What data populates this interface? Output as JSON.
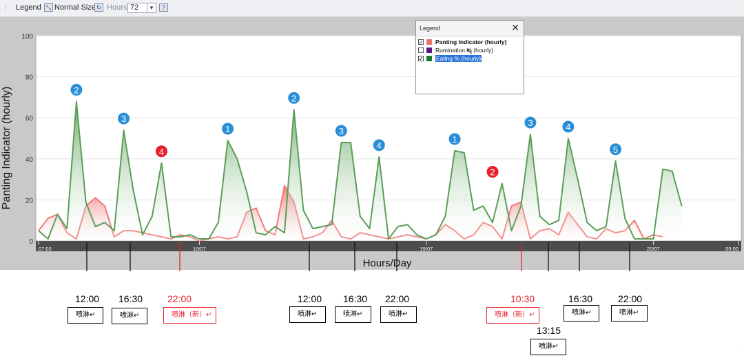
{
  "toolbar": {
    "legend_label": "Legend",
    "normal_size_label": "Normal Size",
    "hours_label": "Hours",
    "hours_value": "72",
    "help_label": "?"
  },
  "legend": {
    "title": "Legend",
    "close": "✕",
    "items": [
      {
        "label": "Panting Indicator (hourly)",
        "checked": true,
        "color": "#e8706f"
      },
      {
        "label": "Rumination % (hourly)",
        "checked": false,
        "color": "#5a1580"
      },
      {
        "label": "Eating % (hourly)",
        "checked": true,
        "color": "#1a7a2a"
      }
    ]
  },
  "chart_data": {
    "type": "area",
    "ylabel": "Panting Indicator (hourly)",
    "xlabel": "Hours/Day",
    "ylim": [
      0,
      100
    ],
    "yticks": [
      0,
      20,
      40,
      60,
      80,
      100
    ],
    "xlim": [
      0,
      74
    ],
    "xtick_labels": [
      {
        "label": "07:00",
        "hour": 0
      },
      {
        "label": "18/07",
        "hour": 17
      },
      {
        "label": "19/07",
        "hour": 41
      },
      {
        "label": "20/07",
        "hour": 65
      },
      {
        "label": "09:00",
        "hour": 74
      }
    ],
    "series": [
      {
        "name": "Panting Indicator (hourly)",
        "color": "#ef7a7a",
        "values": [
          5,
          11,
          13,
          4,
          1,
          17,
          21,
          17,
          2,
          5,
          5,
          4,
          3,
          2,
          1,
          3,
          2,
          0,
          1,
          2,
          1,
          2,
          14,
          16,
          5,
          3,
          27,
          19,
          1,
          2,
          4,
          10,
          2,
          1,
          4,
          3,
          2,
          1,
          2,
          3,
          2,
          1,
          3,
          8,
          5,
          1,
          3,
          9,
          7,
          1,
          17,
          19,
          1,
          5,
          6,
          3,
          14,
          8,
          2,
          1,
          6,
          4,
          5,
          10,
          1,
          3,
          2
        ]
      },
      {
        "name": "Eating % (hourly)",
        "color": "#5a9e58",
        "values": [
          5,
          1,
          13,
          6,
          68,
          19,
          7,
          9,
          5,
          54,
          25,
          3,
          12,
          38,
          2,
          2,
          3,
          1,
          1,
          9,
          49,
          40,
          24,
          4,
          3,
          7,
          4,
          64,
          15,
          6,
          7,
          8,
          48,
          48,
          12,
          6,
          41,
          1,
          7,
          8,
          3,
          1,
          3,
          12,
          44,
          43,
          15,
          17,
          9,
          28,
          5,
          17,
          52,
          12,
          8,
          10,
          50,
          30,
          9,
          5,
          7,
          39,
          11,
          1,
          1,
          1,
          35,
          34,
          17
        ]
      }
    ],
    "markers": [
      {
        "label": "2",
        "hour": 4,
        "color": "#2a8ed6"
      },
      {
        "label": "3",
        "hour": 9,
        "color": "#2a8ed6"
      },
      {
        "label": "4",
        "hour": 13,
        "color": "#e8202b"
      },
      {
        "label": "1",
        "hour": 20,
        "color": "#2a8ed6"
      },
      {
        "label": "2",
        "hour": 27,
        "color": "#2a8ed6"
      },
      {
        "label": "3",
        "hour": 32,
        "color": "#2a8ed6"
      },
      {
        "label": "4",
        "hour": 36,
        "color": "#2a8ed6"
      },
      {
        "label": "1",
        "hour": 44,
        "color": "#2a8ed6"
      },
      {
        "label": "2",
        "hour": 48,
        "color": "#e8202b"
      },
      {
        "label": "3",
        "hour": 52,
        "color": "#2a8ed6"
      },
      {
        "label": "4",
        "hour": 56,
        "color": "#2a8ed6"
      },
      {
        "label": "5",
        "hour": 61,
        "color": "#2a8ed6"
      }
    ]
  },
  "annotations": [
    {
      "time": "12:00",
      "note": "喷淋↵",
      "red": false
    },
    {
      "time": "16:30",
      "note": "喷淋↵",
      "red": false
    },
    {
      "time": "22:00",
      "note": "喷淋（新）↵",
      "red": true
    },
    {
      "time": "12:00",
      "note": "喷淋↵",
      "red": false
    },
    {
      "time": "16:30",
      "note": "喷淋↵",
      "red": false
    },
    {
      "time": "22:00",
      "note": "喷淋↵",
      "red": false
    },
    {
      "time": "10:30",
      "note": "喷淋（新）↵",
      "red": true
    },
    {
      "time": "13:15",
      "note": "喷淋↵",
      "red": false
    },
    {
      "time": "16:30",
      "note": "喷淋↵",
      "red": false
    },
    {
      "time": "22:00",
      "note": "喷淋↵",
      "red": false
    }
  ],
  "corner_mark": "·"
}
